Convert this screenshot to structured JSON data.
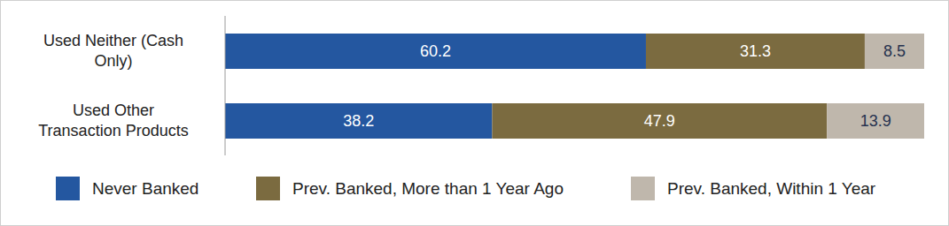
{
  "chart_data": {
    "type": "bar",
    "orientation": "horizontal",
    "stacked": true,
    "data_labels": true,
    "tick_labels": "y",
    "legend": "bottom",
    "categories": [
      "Used Neither (Cash Only)",
      "Used Other Transaction Products"
    ],
    "series": [
      {
        "name": "Never Banked",
        "color": "#2457a0",
        "values": [
          60.2,
          38.2
        ]
      },
      {
        "name": "Prev. Banked, More than 1 Year Ago",
        "color": "#7b6b40",
        "values": [
          31.3,
          47.9
        ]
      },
      {
        "name": "Prev. Banked, Within 1 Year",
        "color": "#bfb7ac",
        "values": [
          8.5,
          13.9
        ]
      }
    ],
    "xlim": [
      0,
      100
    ]
  }
}
